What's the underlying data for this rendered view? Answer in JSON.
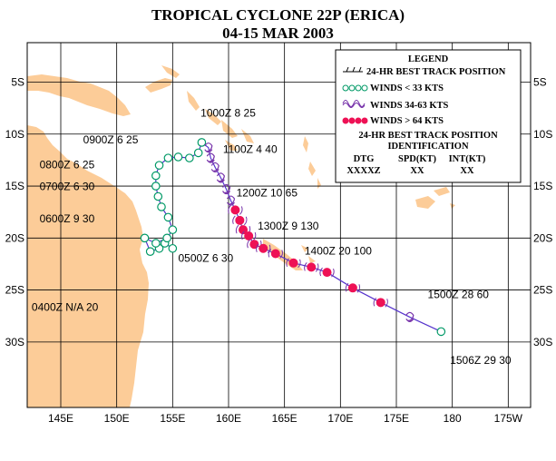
{
  "title": "TROPICAL CYCLONE 22P (ERICA)",
  "subtitle": "04-15 MAR 2003",
  "axes": {
    "lon_ticks": [
      "145E",
      "150E",
      "155E",
      "160E",
      "165E",
      "170E",
      "175E",
      "180",
      "175W"
    ],
    "lat_ticks": [
      "5S",
      "10S",
      "15S",
      "20S",
      "25S",
      "30S"
    ],
    "lon_range": [
      142,
      187
    ],
    "lat_range": [
      -1.2,
      -36.3
    ]
  },
  "colors": {
    "land": "#fccc98",
    "grid": "#000000",
    "weak": "#009966",
    "moderate": "#7733aa",
    "strong": "#ee1155",
    "track": "#5533cc"
  },
  "legend": {
    "title": "LEGEND",
    "best_track": "24-HR BEST TRACK POSITION",
    "winds_lt33": "WINDS < 33 KTS",
    "winds_34_63": "WINDS 34-63 KTS",
    "winds_gt64": "WINDS > 64 KTS",
    "id_line1": "24-HR BEST TRACK POSITION",
    "id_line2": "IDENTIFICATION",
    "h_dtg": "DTG",
    "h_spd": "SPD(KT)",
    "h_int": "INT(KT)",
    "v_dtg": "XXXXZ",
    "v_spd": "XX",
    "v_int": "XX"
  },
  "chart_data": {
    "type": "track",
    "track": [
      {
        "lon": 155.0,
        "lat": -21.0,
        "intensity": "weak"
      },
      {
        "lon": 154.3,
        "lat": -20.5,
        "intensity": "weak"
      },
      {
        "lon": 153.8,
        "lat": -21.0,
        "intensity": "weak"
      },
      {
        "lon": 153.0,
        "lat": -21.3,
        "intensity": "weak"
      },
      {
        "lon": 152.5,
        "lat": -20.0,
        "intensity": "weak"
      },
      {
        "lon": 153.5,
        "lat": -20.5,
        "intensity": "weak"
      },
      {
        "lon": 154.5,
        "lat": -20.0,
        "intensity": "weak"
      },
      {
        "lon": 155.0,
        "lat": -19.2,
        "intensity": "weak"
      },
      {
        "lon": 154.6,
        "lat": -18.0,
        "intensity": "weak"
      },
      {
        "lon": 154.0,
        "lat": -17.0,
        "intensity": "weak"
      },
      {
        "lon": 153.7,
        "lat": -16.0,
        "intensity": "weak"
      },
      {
        "lon": 153.5,
        "lat": -15.0,
        "intensity": "weak"
      },
      {
        "lon": 153.5,
        "lat": -14.0,
        "intensity": "weak"
      },
      {
        "lon": 153.8,
        "lat": -13.0,
        "intensity": "weak"
      },
      {
        "lon": 154.6,
        "lat": -12.3,
        "intensity": "weak"
      },
      {
        "lon": 155.5,
        "lat": -12.2,
        "intensity": "weak"
      },
      {
        "lon": 156.5,
        "lat": -12.3,
        "intensity": "weak"
      },
      {
        "lon": 157.3,
        "lat": -11.8,
        "intensity": "weak"
      },
      {
        "lon": 157.6,
        "lat": -10.8,
        "intensity": "weak"
      },
      {
        "lon": 158.2,
        "lat": -11.3,
        "intensity": "moderate"
      },
      {
        "lon": 158.4,
        "lat": -12.3,
        "intensity": "moderate"
      },
      {
        "lon": 158.8,
        "lat": -13.2,
        "intensity": "moderate"
      },
      {
        "lon": 159.3,
        "lat": -14.2,
        "intensity": "moderate"
      },
      {
        "lon": 159.8,
        "lat": -15.3,
        "intensity": "moderate"
      },
      {
        "lon": 160.2,
        "lat": -16.4,
        "intensity": "moderate"
      },
      {
        "lon": 160.6,
        "lat": -17.3,
        "intensity": "strong"
      },
      {
        "lon": 161.0,
        "lat": -18.3,
        "intensity": "strong"
      },
      {
        "lon": 161.3,
        "lat": -19.2,
        "intensity": "strong"
      },
      {
        "lon": 161.8,
        "lat": -19.8,
        "intensity": "strong"
      },
      {
        "lon": 162.3,
        "lat": -20.6,
        "intensity": "strong"
      },
      {
        "lon": 163.1,
        "lat": -21.0,
        "intensity": "strong"
      },
      {
        "lon": 164.2,
        "lat": -21.5,
        "intensity": "strong"
      },
      {
        "lon": 165.8,
        "lat": -22.4,
        "intensity": "strong"
      },
      {
        "lon": 167.4,
        "lat": -22.8,
        "intensity": "strong"
      },
      {
        "lon": 168.8,
        "lat": -23.3,
        "intensity": "strong"
      },
      {
        "lon": 171.1,
        "lat": -24.8,
        "intensity": "strong"
      },
      {
        "lon": 173.6,
        "lat": -26.2,
        "intensity": "strong"
      },
      {
        "lon": 176.2,
        "lat": -27.6,
        "intensity": "moderate"
      },
      {
        "lon": 179.0,
        "lat": -29.0,
        "intensity": "weak"
      }
    ],
    "annotations": [
      {
        "text": "1000Z  8  25",
        "lon": 157.5,
        "lat": -8.3
      },
      {
        "text": "0900Z  6  25",
        "lon": 147.0,
        "lat": -10.9
      },
      {
        "text": "1100Z  4  40",
        "lon": 159.5,
        "lat": -11.8
      },
      {
        "text": "0800Z  6  25",
        "lon": 143.1,
        "lat": -13.3
      },
      {
        "text": "0700Z  6  30",
        "lon": 143.1,
        "lat": -15.4
      },
      {
        "text": "1200Z 10  65",
        "lon": 160.7,
        "lat": -16.0
      },
      {
        "text": "0600Z  9  30",
        "lon": 143.1,
        "lat": -18.5
      },
      {
        "text": "1300Z  9 130",
        "lon": 162.6,
        "lat": -19.2
      },
      {
        "text": "1400Z 20 100",
        "lon": 166.8,
        "lat": -21.6
      },
      {
        "text": "0500Z  6  30",
        "lon": 155.5,
        "lat": -22.3
      },
      {
        "text": "0400Z N/A  20",
        "lon": 142.4,
        "lat": -27.0
      },
      {
        "text": "1500Z 28  60",
        "lon": 177.8,
        "lat": -25.8
      },
      {
        "text": "1506Z 29  30",
        "lon": 179.8,
        "lat": -32.1
      }
    ]
  }
}
